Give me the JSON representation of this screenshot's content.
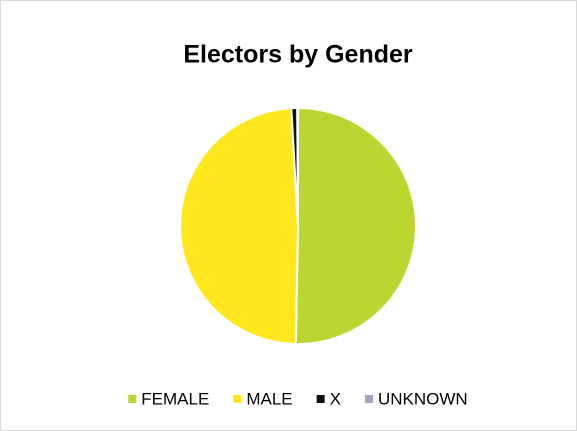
{
  "chart_data": {
    "type": "pie",
    "title": "Electors by Gender",
    "categories": [
      "FEMALE",
      "MALE",
      "X",
      "UNKNOWN"
    ],
    "values": [
      50.3,
      48.8,
      0.8,
      0.1
    ],
    "colors": [
      "#bdd531",
      "#fee81d",
      "#111111",
      "#a3a3c2"
    ],
    "legend": "bottom"
  }
}
